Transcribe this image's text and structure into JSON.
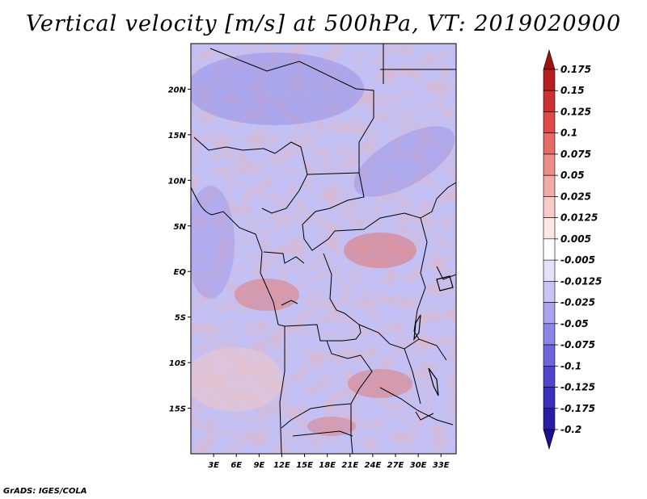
{
  "chart_data": {
    "type": "heatmap",
    "title": "Vertical velocity [m/s] at 500hPa, VT: 2019020900",
    "variable": "Vertical velocity",
    "units": "m/s",
    "level": "500hPa",
    "valid_time": "2019020900",
    "region": {
      "lon_range": [
        0,
        35
      ],
      "lat_range": [
        -20,
        25
      ]
    },
    "x_ticks": [
      "3E",
      "6E",
      "9E",
      "12E",
      "15E",
      "18E",
      "21E",
      "24E",
      "27E",
      "30E",
      "33E"
    ],
    "x_tick_values": [
      3,
      6,
      9,
      12,
      15,
      18,
      21,
      24,
      27,
      30,
      33
    ],
    "y_ticks": [
      "20N",
      "15N",
      "10N",
      "5N",
      "EQ",
      "5S",
      "10S",
      "15S"
    ],
    "y_tick_values": [
      20,
      15,
      10,
      5,
      0,
      -5,
      -10,
      -15
    ],
    "colorbar": {
      "labels": [
        "0.175",
        "0.15",
        "0.125",
        "0.1",
        "0.075",
        "0.05",
        "0.025",
        "0.0125",
        "0.005",
        "-0.005",
        "-0.0125",
        "-0.025",
        "-0.05",
        "-0.075",
        "-0.1",
        "-0.125",
        "-0.175",
        "-0.2"
      ],
      "colors": [
        "#a01010",
        "#b82020",
        "#cc3030",
        "#dd4a48",
        "#e66a66",
        "#ee8c88",
        "#f4aaa6",
        "#f9cbc8",
        "#fde6e4",
        "#ffffff",
        "#e4e2fb",
        "#c8c4f5",
        "#aaa4ee",
        "#8c84e6",
        "#6e64dc",
        "#5046cc",
        "#3a2fba",
        "#2a1fa4",
        "#1c1090"
      ]
    },
    "legend_position": "right"
  },
  "footer": {
    "credit": "GrADS: IGES/COLA"
  }
}
